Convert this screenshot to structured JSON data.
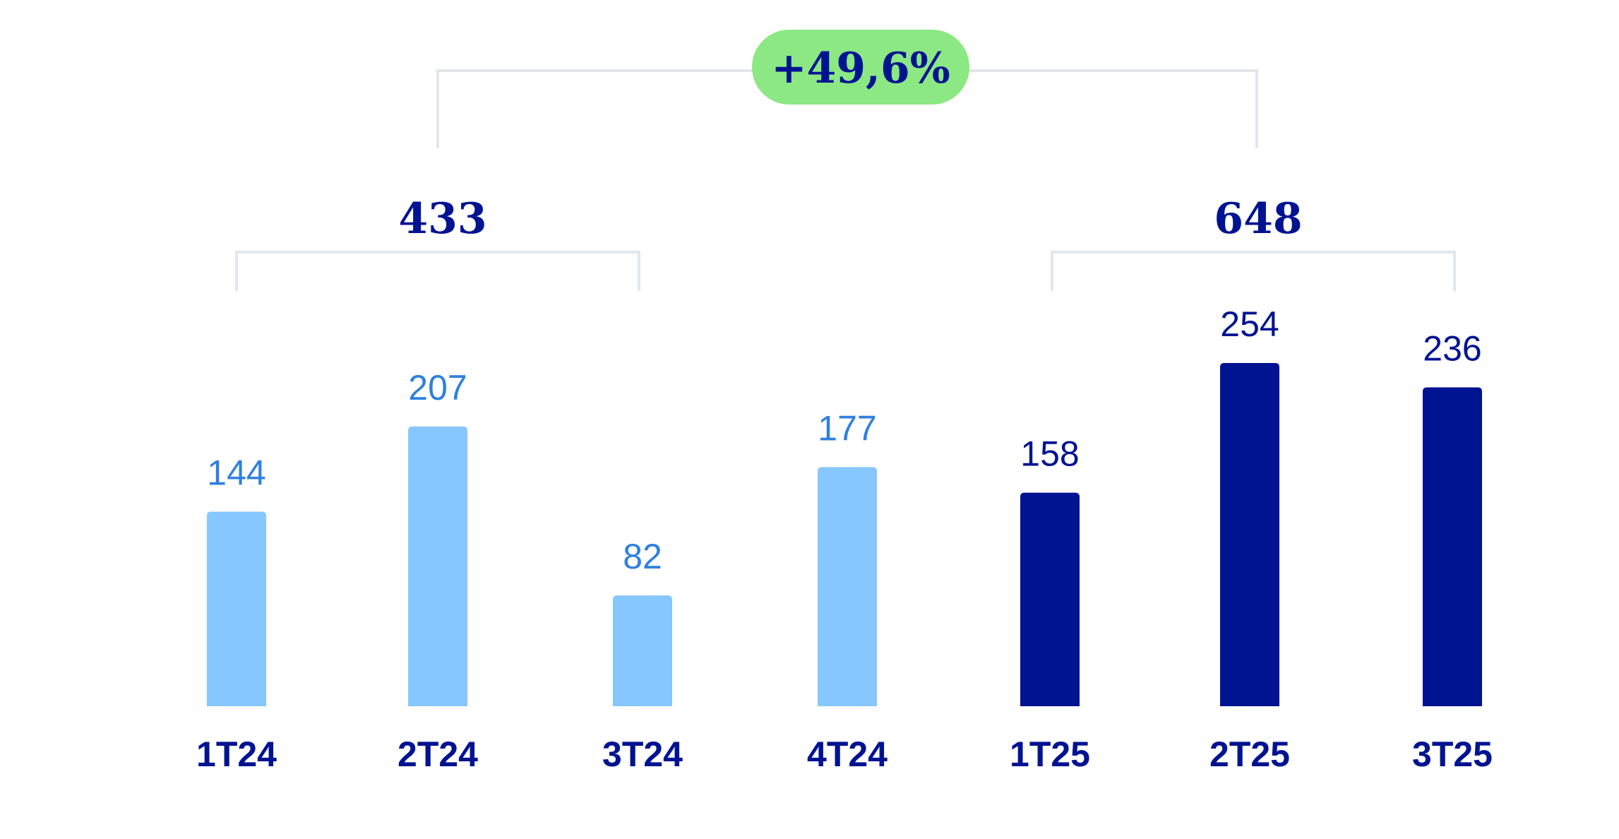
{
  "chart_data": {
    "type": "bar",
    "categories": [
      "1T24",
      "2T24",
      "3T24",
      "4T24",
      "1T25",
      "2T25",
      "3T25"
    ],
    "values": [
      144,
      207,
      82,
      177,
      158,
      254,
      236
    ],
    "title": "",
    "xlabel": "",
    "ylabel": "",
    "ylim": [
      0,
      254
    ],
    "grid": false,
    "groups": [
      {
        "total": "433",
        "members": [
          "1T24",
          "2T24",
          "3T24"
        ]
      },
      {
        "total": "648",
        "members": [
          "1T25",
          "2T25",
          "3T25"
        ]
      }
    ],
    "growth_label": "+49,6%"
  },
  "colors": {
    "bar_2024": "#87c7ff",
    "bar_2025": "#001391",
    "value_label_2024": "#2f80e0",
    "value_label_2025": "#001391",
    "category_label": "#001391",
    "group_total": "#001391",
    "growth_badge_bg": "#8be883",
    "growth_text": "#001391",
    "bracket": "#e3e6ea"
  }
}
